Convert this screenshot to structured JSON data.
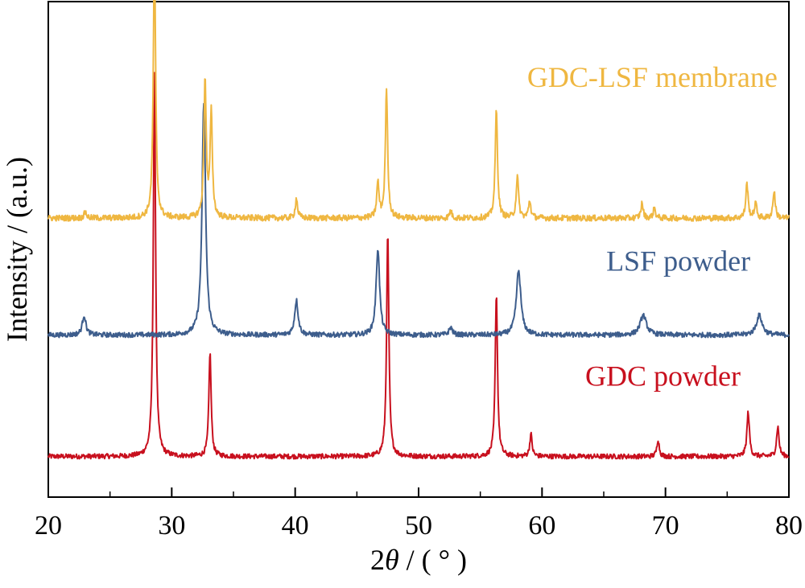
{
  "chart_data": {
    "type": "line",
    "title": "",
    "xlabel": {
      "prefix": "2",
      "symbol": "θ",
      "suffix": " / ( ° )"
    },
    "ylabel": "Intensity / (a.u.)",
    "xlim": [
      20,
      80
    ],
    "xticks": [
      20,
      30,
      40,
      50,
      60,
      70,
      80
    ],
    "xticks_minor": [
      25,
      35,
      45,
      55,
      65,
      75
    ],
    "yticks": [],
    "ylim": [
      0,
      100
    ],
    "grid": false,
    "legend": "inline-labels",
    "series": [
      {
        "name": "GDC powder",
        "color": "#c8101e",
        "baseline": 8.2,
        "noise": 0.5,
        "label_x": 63.5,
        "label_y": 22.5,
        "peaks": [
          {
            "x": 28.6,
            "h": 77,
            "w": 0.11
          },
          {
            "x": 33.1,
            "h": 21,
            "w": 0.11
          },
          {
            "x": 47.5,
            "h": 45,
            "w": 0.11
          },
          {
            "x": 56.3,
            "h": 33,
            "w": 0.11
          },
          {
            "x": 59.1,
            "h": 4.5,
            "w": 0.11
          },
          {
            "x": 69.4,
            "h": 3.5,
            "w": 0.11
          },
          {
            "x": 76.7,
            "h": 9,
            "w": 0.12
          },
          {
            "x": 79.1,
            "h": 6,
            "w": 0.12
          }
        ]
      },
      {
        "name": "LSF powder",
        "color": "#3d5d8c",
        "baseline": 32.7,
        "noise": 0.5,
        "label_x": 65.2,
        "label_y": 45.7,
        "peaks": [
          {
            "x": 22.9,
            "h": 4,
            "w": 0.17
          },
          {
            "x": 32.6,
            "h": 47,
            "w": 0.17
          },
          {
            "x": 40.1,
            "h": 7,
            "w": 0.17
          },
          {
            "x": 46.7,
            "h": 17.5,
            "w": 0.17
          },
          {
            "x": 52.6,
            "h": 1.5,
            "w": 0.17
          },
          {
            "x": 58.1,
            "h": 13,
            "w": 0.22
          },
          {
            "x": 68.2,
            "h": 4,
            "w": 0.3
          },
          {
            "x": 77.6,
            "h": 4,
            "w": 0.28
          }
        ]
      },
      {
        "name": "GDC-LSF membrane",
        "color": "#efb741",
        "baseline": 56.3,
        "noise": 0.6,
        "label_x": 58.8,
        "label_y": 82.8,
        "peaks": [
          {
            "x": 23.0,
            "h": 1.3,
            "w": 0.11
          },
          {
            "x": 28.6,
            "h": 54,
            "w": 0.11
          },
          {
            "x": 32.7,
            "h": 28,
            "w": 0.11
          },
          {
            "x": 33.2,
            "h": 21,
            "w": 0.11
          },
          {
            "x": 40.1,
            "h": 4,
            "w": 0.11
          },
          {
            "x": 46.7,
            "h": 7,
            "w": 0.11
          },
          {
            "x": 47.4,
            "h": 26,
            "w": 0.11
          },
          {
            "x": 52.6,
            "h": 1.5,
            "w": 0.11
          },
          {
            "x": 56.3,
            "h": 22,
            "w": 0.11
          },
          {
            "x": 58.0,
            "h": 8.5,
            "w": 0.11
          },
          {
            "x": 59.0,
            "h": 3.5,
            "w": 0.11
          },
          {
            "x": 68.1,
            "h": 3,
            "w": 0.11
          },
          {
            "x": 69.1,
            "h": 2,
            "w": 0.11
          },
          {
            "x": 76.6,
            "h": 7,
            "w": 0.11
          },
          {
            "x": 77.3,
            "h": 3,
            "w": 0.11
          },
          {
            "x": 78.8,
            "h": 5.5,
            "w": 0.11
          }
        ]
      }
    ]
  }
}
